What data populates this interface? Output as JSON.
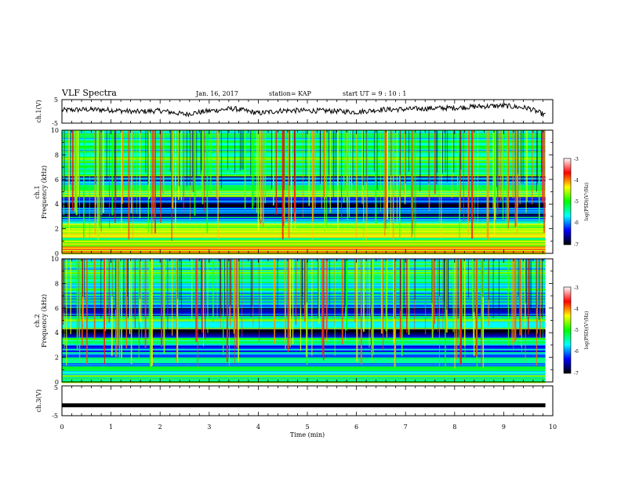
{
  "header": {
    "title": "VLF Spectra",
    "date": "Jan. 16, 2017",
    "station": "station= KAP",
    "start": "start  UT =  9 : 10 : 1"
  },
  "chart_data": [
    {
      "type": "line",
      "name": "ch.1 waveform",
      "ylabel": "ch.1(V)",
      "ylim": [
        -5,
        5
      ],
      "yticks": [
        "5",
        "-5"
      ],
      "xlim": [
        0,
        10
      ],
      "x_end": 9.85,
      "x": [
        0,
        0.5,
        1,
        1.5,
        2,
        2.5,
        3,
        3.5,
        4,
        4.5,
        5,
        5.5,
        6,
        6.5,
        7,
        7.5,
        8,
        8.5,
        9,
        9.5,
        9.85
      ],
      "y": [
        0.5,
        0.8,
        0.6,
        -0.2,
        0.3,
        -1.2,
        0.2,
        1.2,
        -0.8,
        0.4,
        0.3,
        0.2,
        -0.3,
        0.8,
        0.9,
        1.3,
        1.5,
        2.1,
        2.4,
        1.4,
        -1.6
      ]
    },
    {
      "type": "heatmap",
      "name": "ch.1 spectrogram",
      "ylabel": "ch.1\nFrequency (kHz)",
      "ylim": [
        0,
        10
      ],
      "yticks": [
        "0",
        "2",
        "4",
        "6",
        "8",
        "10"
      ],
      "xlim": [
        0,
        10
      ],
      "x_end": 9.85,
      "colorbar": {
        "label": "log(PSD)(V²/Hz)",
        "range": [
          -7,
          -3
        ],
        "ticks": [
          "-3",
          "-4",
          "-5",
          "-6",
          "-7"
        ]
      },
      "bands_khz_log_psd": [
        [
          0.0,
          0.5,
          -4.0
        ],
        [
          0.5,
          1.0,
          -4.3
        ],
        [
          1.0,
          1.8,
          -4.7
        ],
        [
          1.8,
          2.6,
          -5.0
        ],
        [
          2.6,
          3.0,
          -5.9
        ],
        [
          3.0,
          3.3,
          -6.9
        ],
        [
          3.3,
          3.8,
          -6.0
        ],
        [
          3.8,
          4.6,
          -6.5
        ],
        [
          4.6,
          5.6,
          -5.0
        ],
        [
          5.6,
          6.3,
          -6.2
        ],
        [
          6.3,
          8.0,
          -5.2
        ],
        [
          8.0,
          10.0,
          -5.5
        ]
      ]
    },
    {
      "type": "heatmap",
      "name": "ch.2 spectrogram",
      "ylabel": "ch.2\nFrequency (kHz)",
      "ylim": [
        0,
        10
      ],
      "yticks": [
        "0",
        "2",
        "4",
        "6",
        "8",
        "10"
      ],
      "xlim": [
        0,
        10
      ],
      "x_end": 9.85,
      "colorbar": {
        "label": "log(PSD)(V²/Hz)",
        "range": [
          -7,
          -3
        ],
        "ticks": [
          "-3",
          "-4",
          "-5",
          "-6",
          "-7"
        ]
      },
      "bands_khz_log_psd": [
        [
          0.0,
          0.8,
          -5.2
        ],
        [
          0.8,
          2.0,
          -5.6
        ],
        [
          2.0,
          3.2,
          -6.0
        ],
        [
          3.2,
          3.7,
          -5.5
        ],
        [
          3.7,
          4.3,
          -7.0
        ],
        [
          4.3,
          5.4,
          -5.2
        ],
        [
          5.4,
          6.2,
          -6.4
        ],
        [
          6.2,
          7.5,
          -5.6
        ],
        [
          7.5,
          10.0,
          -5.3
        ]
      ]
    },
    {
      "type": "line",
      "name": "ch.3 waveform",
      "ylabel": "ch.3(V)",
      "ylim": [
        -5,
        5
      ],
      "yticks": [
        "5",
        "-5"
      ],
      "xlim": [
        0,
        10
      ],
      "x_end": 9.85,
      "x": [
        0,
        9.85
      ],
      "y": [
        -1.5,
        -1.5
      ]
    }
  ],
  "x_axis": {
    "label": "Time  (min)",
    "ticks": [
      "0",
      "1",
      "2",
      "3",
      "4",
      "5",
      "6",
      "7",
      "8",
      "9",
      "10"
    ]
  },
  "colormap": [
    "#000000",
    "#0000ff",
    "#00ffff",
    "#00ff00",
    "#ffff00",
    "#ff0000",
    "#ffffff"
  ]
}
